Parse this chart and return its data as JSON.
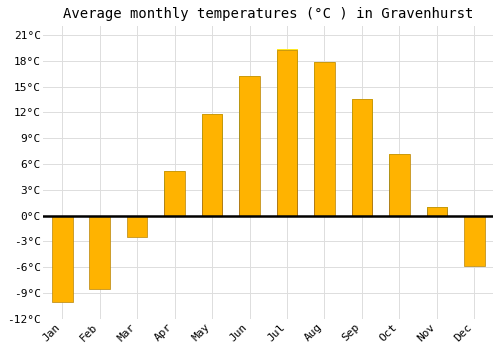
{
  "months": [
    "Jan",
    "Feb",
    "Mar",
    "Apr",
    "May",
    "Jun",
    "Jul",
    "Aug",
    "Sep",
    "Oct",
    "Nov",
    "Dec"
  ],
  "temperatures": [
    -10.0,
    -8.5,
    -2.5,
    5.2,
    11.8,
    16.2,
    19.3,
    17.8,
    13.5,
    7.2,
    1.0,
    -5.8
  ],
  "bar_color_top": "#FFB300",
  "bar_color_bottom": "#FF9500",
  "bar_edge_color": "#B8860B",
  "title": "Average monthly temperatures (°C ) in Gravenhurst",
  "ylim": [
    -12,
    22
  ],
  "yticks": [
    -12,
    -9,
    -6,
    -3,
    0,
    3,
    6,
    9,
    12,
    15,
    18,
    21
  ],
  "ytick_labels": [
    "-12°C",
    "-9°C",
    "-6°C",
    "-3°C",
    "0°C",
    "3°C",
    "6°C",
    "9°C",
    "12°C",
    "15°C",
    "18°C",
    "21°C"
  ],
  "background_color": "#ffffff",
  "grid_color": "#dddddd",
  "title_fontsize": 10,
  "tick_fontsize": 8,
  "bar_width": 0.55
}
